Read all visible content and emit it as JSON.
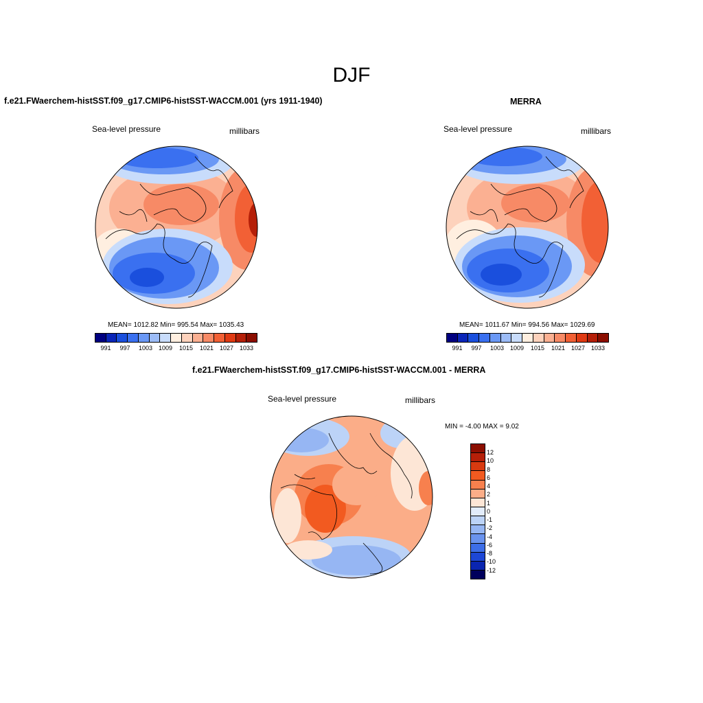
{
  "figure": {
    "title": "DJF"
  },
  "panels": [
    {
      "title": "f.e21.FWaerchem-histSST.f09_g17.CMIP6-histSST-WACCM.001 (yrs 1911-1940)",
      "left_label": "Sea-level pressure",
      "right_label": "millibars",
      "stats": "MEAN= 1012.82  Min= 995.54  Max= 1035.43",
      "colorbar_ticks": [
        "991",
        "997",
        "1003",
        "1009",
        "1015",
        "1021",
        "1027",
        "1033"
      ]
    },
    {
      "title": "MERRA",
      "left_label": "Sea-level pressure",
      "right_label": "millibars",
      "stats": "MEAN= 1011.67  Min= 994.56  Max= 1029.69",
      "colorbar_ticks": [
        "991",
        "997",
        "1003",
        "1009",
        "1015",
        "1021",
        "1027",
        "1033"
      ]
    },
    {
      "title": "f.e21.FWaerchem-histSST.f09_g17.CMIP6-histSST-WACCM.001 - MERRA",
      "left_label": "Sea-level pressure",
      "right_label": "millibars",
      "stats": "MIN =  -4.00 MAX =   9.02",
      "colorbar_ticks": [
        "12",
        "10",
        "8",
        "6",
        "4",
        "2",
        "1",
        "0",
        "-1",
        "-2",
        "-4",
        "-6",
        "-8",
        "-10",
        "-12"
      ]
    }
  ],
  "palettes": {
    "absolute": [
      "#000080",
      "#0a25b8",
      "#1a4fdd",
      "#3a70f0",
      "#6a98f5",
      "#9cbcf7",
      "#c8dcfb",
      "#ffefe0",
      "#fdd2bc",
      "#fbb092",
      "#f78a66",
      "#f26035",
      "#e03a13",
      "#b51f08",
      "#8b0e00"
    ],
    "difference": [
      "#8b0e00",
      "#b51f08",
      "#d83a10",
      "#f25a20",
      "#f7804e",
      "#fbad88",
      "#fde6d6",
      "#e2ecfb",
      "#bcd3f7",
      "#96b6f3",
      "#6a93ee",
      "#3d6ee8",
      "#1d47d6",
      "#0a25b0",
      "#00005c"
    ]
  }
}
